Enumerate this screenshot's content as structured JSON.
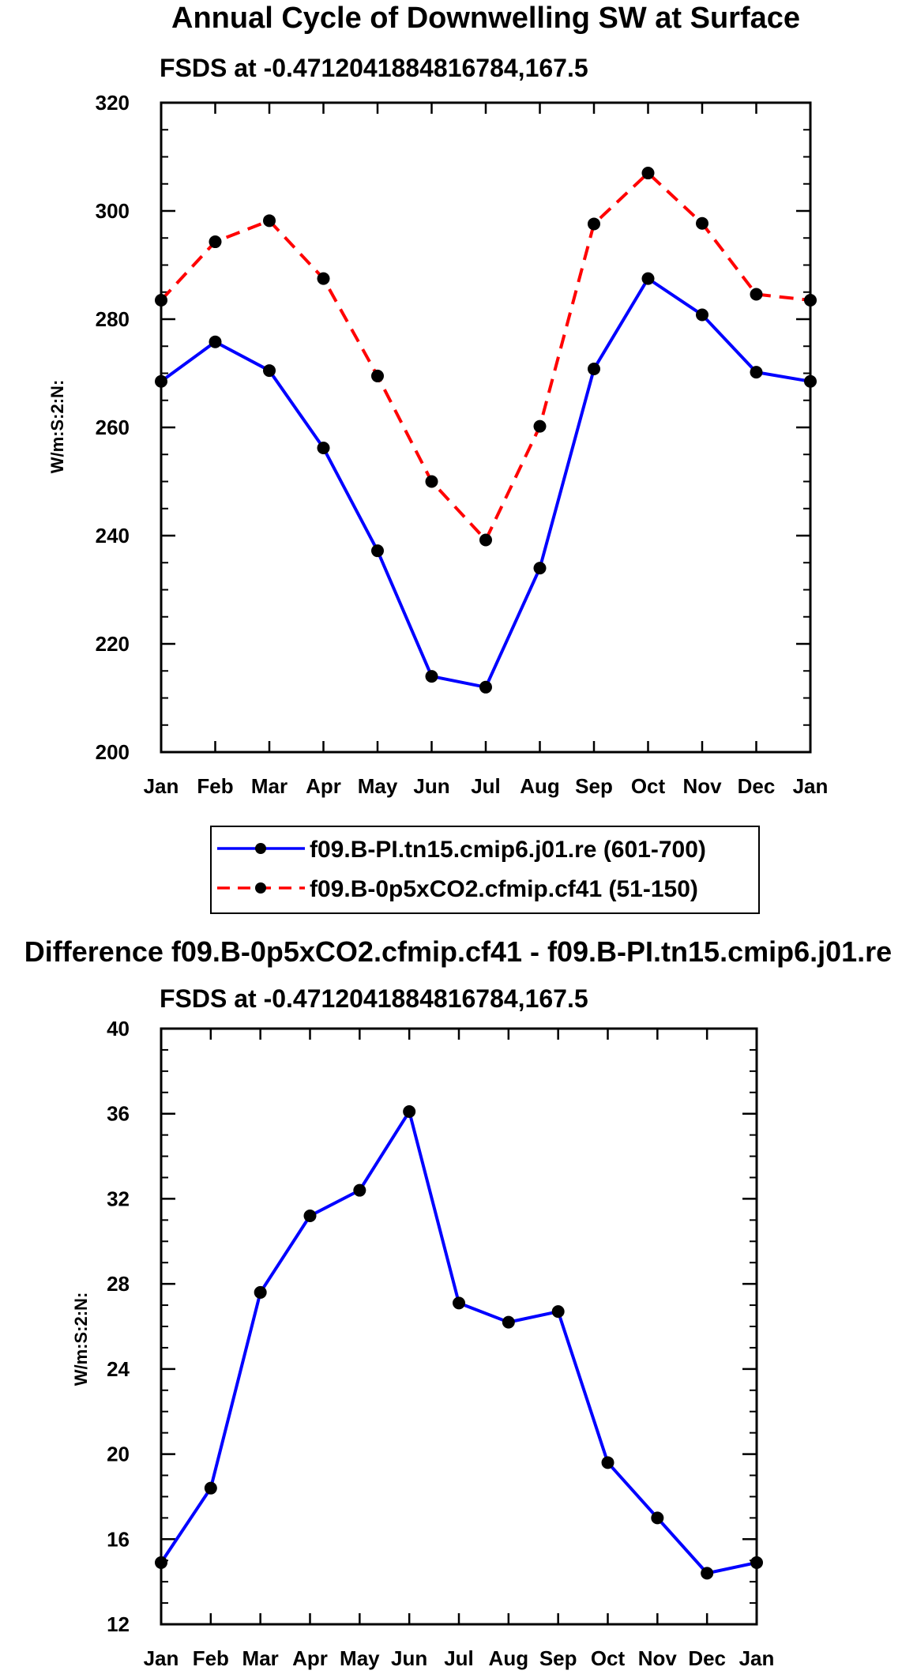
{
  "chart_data": [
    {
      "type": "line",
      "title": "Annual Cycle of Downwelling SW at Surface",
      "subtitle": "FSDS at -0.4712041884816784,167.5",
      "xlabel": "",
      "ylabel": "W/m:S:2:N:",
      "categories": [
        "Jan",
        "Feb",
        "Mar",
        "Apr",
        "May",
        "Jun",
        "Jul",
        "Aug",
        "Sep",
        "Oct",
        "Nov",
        "Dec",
        "Jan"
      ],
      "ylim": [
        200,
        320
      ],
      "yticks": [
        200,
        220,
        240,
        260,
        280,
        300,
        320
      ],
      "series": [
        {
          "name": "f09.B-PI.tn15.cmip6.j01.re (601-700)",
          "color": "#0000ff",
          "dash": "solid",
          "values": [
            268.5,
            275.8,
            270.5,
            256.2,
            237.2,
            214.0,
            212.0,
            234.0,
            270.8,
            287.5,
            280.8,
            270.2,
            268.5
          ]
        },
        {
          "name": "f09.B-0p5xCO2.cfmip.cf41 (51-150)",
          "color": "#ff0000",
          "dash": "dashed",
          "values": [
            283.5,
            294.3,
            298.2,
            287.5,
            269.5,
            250.0,
            239.2,
            260.2,
            297.6,
            307.0,
            297.7,
            284.6,
            283.5
          ]
        }
      ]
    },
    {
      "type": "line",
      "title": "Difference f09.B-0p5xCO2.cfmip.cf41 - f09.B-PI.tn15.cmip6.j01.re",
      "subtitle": "FSDS at -0.4712041884816784,167.5",
      "xlabel": "",
      "ylabel": "W/m:S:2:N:",
      "categories": [
        "Jan",
        "Feb",
        "Mar",
        "Apr",
        "May",
        "Jun",
        "Jul",
        "Aug",
        "Sep",
        "Oct",
        "Nov",
        "Dec",
        "Jan"
      ],
      "ylim": [
        12,
        40
      ],
      "yticks": [
        12,
        16,
        20,
        24,
        28,
        32,
        36,
        40
      ],
      "series": [
        {
          "name": "difference",
          "color": "#0000ff",
          "dash": "solid",
          "values": [
            14.9,
            18.4,
            27.6,
            31.2,
            32.4,
            36.1,
            27.1,
            26.2,
            26.7,
            19.6,
            17.0,
            14.4,
            14.9
          ]
        }
      ]
    }
  ]
}
